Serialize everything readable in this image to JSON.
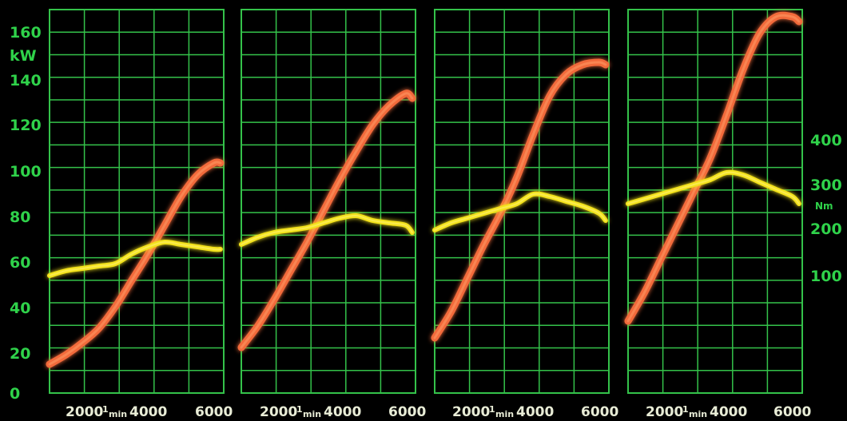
{
  "colors": {
    "background": "#000000",
    "grid": "#34c24a",
    "axis_text": "#2fd24a",
    "tick_text": "#e8ecd6",
    "power_curve": "#f26a3a",
    "power_glow": "#ff9a66",
    "torque_curve": "#f3e21a",
    "torque_glow": "#fff27a"
  },
  "left_axis": {
    "unit": "kW",
    "ticks": [
      "0",
      "20",
      "40",
      "60",
      "80",
      "100",
      "120",
      "140",
      "160"
    ],
    "range": [
      0,
      160
    ]
  },
  "right_axis": {
    "unit": "Nm",
    "ticks": [
      "100",
      "200",
      "300",
      "400"
    ]
  },
  "x_axis": {
    "unit": "1/min",
    "unit_num": "1",
    "unit_den": "min",
    "tick_a": "2000",
    "tick_b": "4000",
    "tick_c": "6000"
  },
  "chart_data": [
    {
      "type": "line",
      "x_range": [
        1000,
        6300
      ],
      "series": [
        {
          "key": "power",
          "x": [
            1000,
            1500,
            2000,
            2500,
            3000,
            3500,
            4000,
            4500,
            5000,
            5500,
            6000,
            6200
          ],
          "values": [
            12,
            16,
            21,
            27,
            36,
            47,
            58,
            70,
            82,
            91,
            96,
            96
          ]
        },
        {
          "key": "torque",
          "x": [
            1000,
            1500,
            2000,
            2500,
            3000,
            3500,
            4000,
            4500,
            5000,
            5500,
            6000,
            6200
          ],
          "values": [
            49,
            51,
            52,
            53,
            54,
            58,
            61,
            63,
            62,
            61,
            60,
            60
          ]
        }
      ]
    },
    {
      "type": "line",
      "x_range": [
        1000,
        6300
      ],
      "series": [
        {
          "key": "power",
          "x": [
            1000,
            1500,
            2000,
            2500,
            3000,
            3500,
            4000,
            4500,
            5000,
            5500,
            6000,
            6200
          ],
          "values": [
            19,
            28,
            39,
            51,
            63,
            76,
            89,
            101,
            112,
            120,
            125,
            123
          ]
        },
        {
          "key": "torque",
          "x": [
            1000,
            1500,
            2000,
            2500,
            3000,
            3500,
            4000,
            4500,
            5000,
            5500,
            6000,
            6200
          ],
          "values": [
            62,
            65,
            67,
            68,
            69,
            71,
            73,
            74,
            72,
            71,
            70,
            67
          ]
        }
      ]
    },
    {
      "type": "line",
      "x_range": [
        1000,
        6300
      ],
      "series": [
        {
          "key": "power",
          "x": [
            1000,
            1500,
            2000,
            2500,
            3000,
            3500,
            4000,
            4500,
            5000,
            5500,
            6000,
            6200
          ],
          "values": [
            23,
            34,
            48,
            62,
            75,
            90,
            108,
            124,
            133,
            137,
            138,
            137
          ]
        },
        {
          "key": "torque",
          "x": [
            1000,
            1500,
            2000,
            2500,
            3000,
            3500,
            4000,
            4500,
            5000,
            5500,
            6000,
            6200
          ],
          "values": [
            68,
            71,
            73,
            75,
            77,
            79,
            83,
            82,
            80,
            78,
            75,
            72
          ]
        }
      ]
    },
    {
      "type": "line",
      "x_range": [
        1000,
        6300
      ],
      "series": [
        {
          "key": "power",
          "x": [
            1000,
            1500,
            2000,
            2500,
            3000,
            3500,
            4000,
            4500,
            5000,
            5500,
            6000,
            6200
          ],
          "values": [
            30,
            42,
            56,
            70,
            84,
            98,
            116,
            135,
            150,
            157,
            157,
            155
          ]
        },
        {
          "key": "torque",
          "x": [
            1000,
            1500,
            2000,
            2500,
            3000,
            3500,
            4000,
            4500,
            5000,
            5500,
            6000,
            6200
          ],
          "values": [
            79,
            81,
            83,
            85,
            87,
            89,
            92,
            91,
            88,
            85,
            82,
            79
          ]
        }
      ]
    }
  ]
}
